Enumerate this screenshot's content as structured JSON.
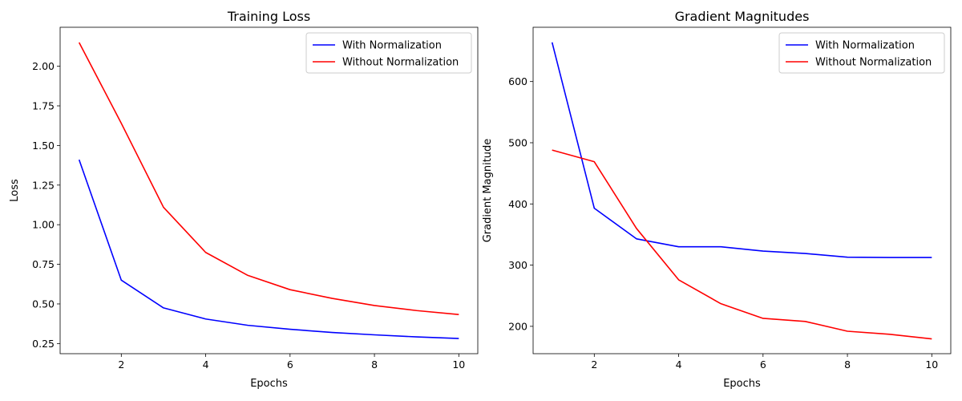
{
  "chart_data": [
    {
      "type": "line",
      "title": "Training Loss",
      "xlabel": "Epochs",
      "ylabel": "Loss",
      "x": [
        1,
        2,
        3,
        4,
        5,
        6,
        7,
        8,
        9,
        10
      ],
      "xlim": [
        0.55,
        10.45
      ],
      "ylim": [
        0.186,
        2.246
      ],
      "xticks": [
        2,
        4,
        6,
        8,
        10
      ],
      "xtick_labels": [
        "2",
        "4",
        "6",
        "8",
        "10"
      ],
      "yticks": [
        0.25,
        0.5,
        0.75,
        1.0,
        1.25,
        1.5,
        1.75,
        2.0
      ],
      "ytick_labels": [
        "0.25",
        "0.50",
        "0.75",
        "1.00",
        "1.25",
        "1.50",
        "1.75",
        "2.00"
      ],
      "grid": false,
      "legend_position": "top-right",
      "series": [
        {
          "name": "With Normalization",
          "color": "#0000ff",
          "values": [
            1.41,
            0.65,
            0.475,
            0.405,
            0.365,
            0.34,
            0.32,
            0.305,
            0.292,
            0.282
          ]
        },
        {
          "name": "Without Normalization",
          "color": "#ff0000",
          "values": [
            2.15,
            1.64,
            1.11,
            0.825,
            0.68,
            0.59,
            0.535,
            0.49,
            0.458,
            0.433
          ]
        }
      ]
    },
    {
      "type": "line",
      "title": "Gradient Magnitudes",
      "xlabel": "Epochs",
      "ylabel": "Gradient Magnitude",
      "x": [
        1,
        2,
        3,
        4,
        5,
        6,
        7,
        8,
        9,
        10
      ],
      "xlim": [
        0.55,
        10.45
      ],
      "ylim": [
        155.3,
        688.7
      ],
      "xticks": [
        2,
        4,
        6,
        8,
        10
      ],
      "xtick_labels": [
        "2",
        "4",
        "6",
        "8",
        "10"
      ],
      "yticks": [
        200,
        300,
        400,
        500,
        600
      ],
      "ytick_labels": [
        "200",
        "300",
        "400",
        "500",
        "600"
      ],
      "grid": false,
      "legend_position": "top-right",
      "series": [
        {
          "name": "With Normalization",
          "color": "#0000ff",
          "values": [
            664,
            393,
            343,
            330,
            330,
            323,
            319,
            313,
            312.5,
            312.5
          ]
        },
        {
          "name": "Without Normalization",
          "color": "#ff0000",
          "values": [
            488,
            469,
            360,
            276,
            237,
            213,
            208,
            192,
            187,
            179.5
          ]
        }
      ]
    }
  ]
}
